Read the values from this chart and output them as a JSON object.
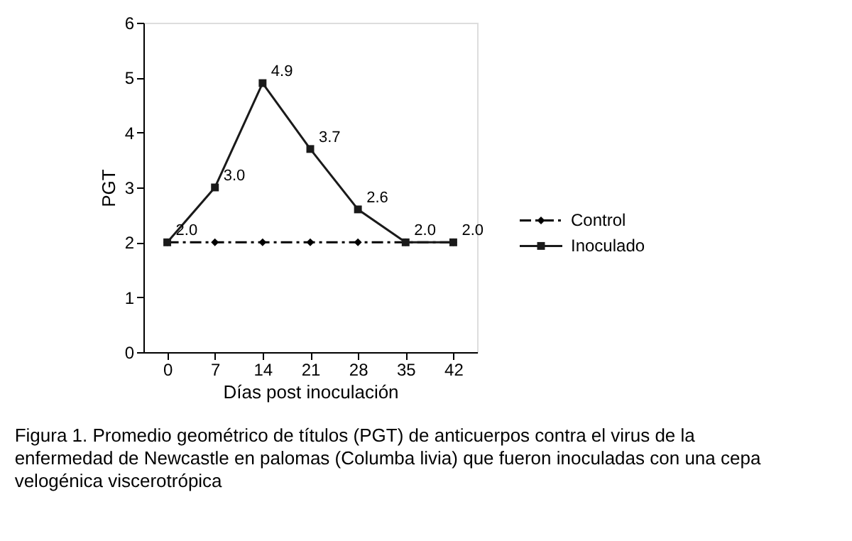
{
  "chart_data": {
    "type": "line",
    "xlabel": "Días post inoculación",
    "ylabel": "PGT",
    "categories": [
      "0",
      "7",
      "14",
      "21",
      "28",
      "35",
      "42"
    ],
    "series": [
      {
        "name": "Control",
        "color": "#000000",
        "values": [
          2.0,
          2.0,
          2.0,
          2.0,
          2.0,
          2.0,
          2.0
        ],
        "marker": "diamond",
        "line_style": "dashed"
      },
      {
        "name": "Inoculado",
        "color": "#1a1a1a",
        "values": [
          2.0,
          3.0,
          4.9,
          3.7,
          2.6,
          2.0,
          2.0
        ],
        "marker": "square",
        "line_style": "solid",
        "value_labels": [
          "2.0",
          "3.0",
          "4.9",
          "3.7",
          "2.6",
          "2.0",
          "2.0"
        ]
      }
    ],
    "ylim": [
      0,
      6
    ],
    "yticks": [
      0,
      1,
      2,
      3,
      4,
      5,
      6
    ],
    "grid": false,
    "legend": "right",
    "annotations": [
      "Figura 1.  Promedio geométrico de títulos (PGT) de anticuerpos contra el virus de la enfermedad de Newcastle en palomas (Columba livia) que fueron inoculadas con una cepa velogénica viscerotrópica"
    ]
  }
}
